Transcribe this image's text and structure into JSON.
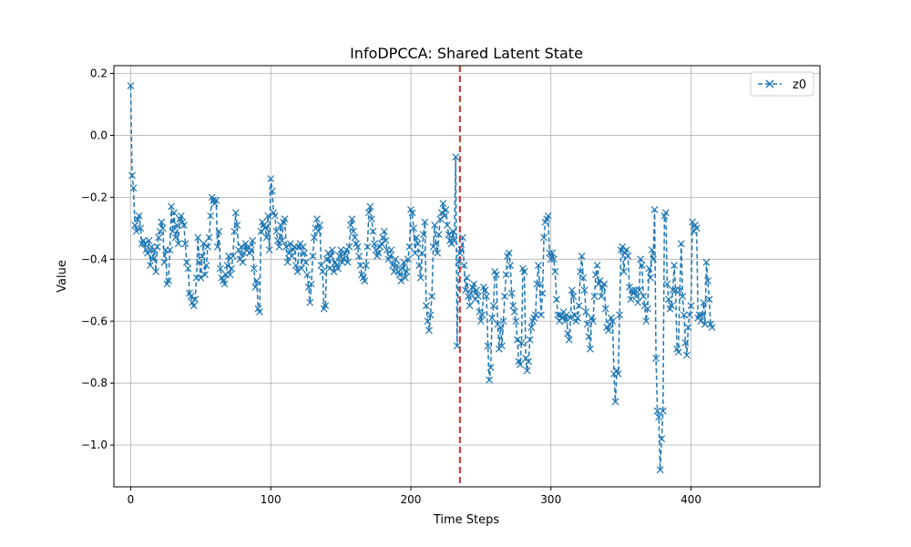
{
  "chart_data": {
    "type": "line",
    "title": "InfoDPCCA: Shared Latent State",
    "xlabel": "Time Steps",
    "ylabel": "Value",
    "xlim": [
      -12,
      492
    ],
    "ylim": [
      -1.135,
      0.225
    ],
    "x_ticks": [
      0,
      100,
      200,
      300,
      400
    ],
    "y_ticks": [
      0.2,
      0.0,
      -0.2,
      -0.4,
      -0.6,
      -0.8,
      -1.0
    ],
    "grid": true,
    "legend_position": "top-right",
    "vline": {
      "x": 235,
      "color": "#d62728",
      "style": "dashed"
    },
    "series": [
      {
        "name": "z0",
        "color": "#1f77b4",
        "marker": "x",
        "linestyle": "dashed",
        "x_start": 0,
        "x_step": 1,
        "values": [
          0.16,
          -0.13,
          -0.17,
          -0.29,
          -0.31,
          -0.27,
          -0.26,
          -0.3,
          -0.35,
          -0.34,
          -0.35,
          -0.37,
          -0.38,
          -0.34,
          -0.42,
          -0.36,
          -0.4,
          -0.37,
          -0.44,
          -0.36,
          -0.33,
          -0.31,
          -0.28,
          -0.3,
          -0.41,
          -0.37,
          -0.48,
          -0.47,
          -0.37,
          -0.23,
          -0.31,
          -0.25,
          -0.33,
          -0.29,
          -0.35,
          -0.27,
          -0.26,
          -0.28,
          -0.29,
          -0.35,
          -0.41,
          -0.43,
          -0.51,
          -0.52,
          -0.54,
          -0.55,
          -0.53,
          -0.46,
          -0.33,
          -0.41,
          -0.46,
          -0.39,
          -0.35,
          -0.45,
          -0.42,
          -0.36,
          -0.33,
          -0.26,
          -0.2,
          -0.21,
          -0.22,
          -0.21,
          -0.36,
          -0.31,
          -0.43,
          -0.46,
          -0.47,
          -0.48,
          -0.45,
          -0.42,
          -0.39,
          -0.45,
          -0.43,
          -0.39,
          -0.31,
          -0.25,
          -0.29,
          -0.37,
          -0.4,
          -0.36,
          -0.41,
          -0.38,
          -0.35,
          -0.37,
          -0.36,
          -0.38,
          -0.37,
          -0.34,
          -0.43,
          -0.49,
          -0.47,
          -0.56,
          -0.57,
          -0.31,
          -0.28,
          -0.29,
          -0.3,
          -0.33,
          -0.26,
          -0.37,
          -0.14,
          -0.18,
          -0.25,
          -0.26,
          -0.31,
          -0.34,
          -0.36,
          -0.29,
          -0.34,
          -0.28,
          -0.27,
          -0.36,
          -0.41,
          -0.38,
          -0.35,
          -0.39,
          -0.37,
          -0.36,
          -0.42,
          -0.44,
          -0.36,
          -0.35,
          -0.43,
          -0.36,
          -0.38,
          -0.41,
          -0.45,
          -0.49,
          -0.54,
          -0.48,
          -0.39,
          -0.33,
          -0.3,
          -0.27,
          -0.31,
          -0.29,
          -0.42,
          -0.44,
          -0.56,
          -0.55,
          -0.4,
          -0.38,
          -0.43,
          -0.39,
          -0.37,
          -0.44,
          -0.41,
          -0.42,
          -0.43,
          -0.39,
          -0.37,
          -0.41,
          -0.4,
          -0.38,
          -0.37,
          -0.41,
          -0.36,
          -0.29,
          -0.27,
          -0.31,
          -0.33,
          -0.35,
          -0.36,
          -0.39,
          -0.42,
          -0.45,
          -0.46,
          -0.47,
          -0.42,
          -0.36,
          -0.25,
          -0.23,
          -0.27,
          -0.31,
          -0.35,
          -0.37,
          -0.39,
          -0.38,
          -0.36,
          -0.35,
          -0.33,
          -0.31,
          -0.34,
          -0.37,
          -0.4,
          -0.39,
          -0.37,
          -0.42,
          -0.44,
          -0.4,
          -0.42,
          -0.44,
          -0.45,
          -0.47,
          -0.43,
          -0.41,
          -0.46,
          -0.44,
          -0.4,
          -0.36,
          -0.24,
          -0.25,
          -0.3,
          -0.38,
          -0.33,
          -0.35,
          -0.42,
          -0.46,
          -0.38,
          -0.32,
          -0.28,
          -0.55,
          -0.6,
          -0.63,
          -0.58,
          -0.52,
          -0.36,
          -0.29,
          -0.35,
          -0.38,
          -0.32,
          -0.27,
          -0.25,
          -0.22,
          -0.26,
          -0.24,
          -0.29,
          -0.32,
          -0.34,
          -0.35,
          -0.31,
          -0.34,
          -0.07,
          -0.68,
          -0.41,
          -0.38,
          -0.37,
          -0.33,
          -0.42,
          -0.5,
          -0.46,
          -0.52,
          -0.55,
          -0.51,
          -0.49,
          -0.48,
          -0.53,
          -0.5,
          -0.52,
          -0.57,
          -0.6,
          -0.58,
          -0.49,
          -0.5,
          -0.52,
          -0.68,
          -0.79,
          -0.75,
          -0.59,
          -0.55,
          -0.44,
          -0.45,
          -0.61,
          -0.69,
          -0.62,
          -0.68,
          -0.6,
          -0.52,
          -0.45,
          -0.39,
          -0.38,
          -0.42,
          -0.51,
          -0.55,
          -0.57,
          -0.6,
          -0.66,
          -0.73,
          -0.74,
          -0.67,
          -0.43,
          -0.44,
          -0.72,
          -0.76,
          -0.73,
          -0.66,
          -0.62,
          -0.6,
          -0.59,
          -0.58,
          -0.48,
          -0.42,
          -0.48,
          -0.58,
          -0.51,
          -0.33,
          -0.28,
          -0.27,
          -0.26,
          -0.38,
          -0.4,
          -0.38,
          -0.4,
          -0.44,
          -0.53,
          -0.58,
          -0.6,
          -0.58,
          -0.59,
          -0.57,
          -0.6,
          -0.58,
          -0.64,
          -0.66,
          -0.59,
          -0.5,
          -0.52,
          -0.58,
          -0.6,
          -0.59,
          -0.55,
          -0.44,
          -0.39,
          -0.46,
          -0.5,
          -0.57,
          -0.61,
          -0.65,
          -0.69,
          -0.59,
          -0.6,
          -0.52,
          -0.45,
          -0.42,
          -0.48,
          -0.47,
          -0.52,
          -0.49,
          -0.48,
          -0.56,
          -0.62,
          -0.63,
          -0.61,
          -0.59,
          -0.6,
          -0.77,
          -0.86,
          -0.76,
          -0.77,
          -0.58,
          -0.37,
          -0.36,
          -0.44,
          -0.38,
          -0.37,
          -0.39,
          -0.49,
          -0.53,
          -0.5,
          -0.51,
          -0.5,
          -0.52,
          -0.54,
          -0.5,
          -0.4,
          -0.42,
          -0.52,
          -0.55,
          -0.6,
          -0.56,
          -0.43,
          -0.46,
          -0.37,
          -0.4,
          -0.24,
          -0.72,
          -0.89,
          -0.91,
          -1.08,
          -0.98,
          -0.89,
          -0.26,
          -0.25,
          -0.48,
          -0.53,
          -0.56,
          -0.55,
          -0.5,
          -0.42,
          -0.5,
          -0.69,
          -0.7,
          -0.5,
          -0.35,
          -0.52,
          -0.58,
          -0.67,
          -0.71,
          -0.62,
          -0.58,
          -0.55,
          -0.28,
          -0.31,
          -0.29,
          -0.3,
          -0.59,
          -0.58,
          -0.6,
          -0.58,
          -0.54,
          -0.61,
          -0.41,
          -0.47,
          -0.53,
          -0.61,
          -0.62
        ]
      }
    ]
  }
}
